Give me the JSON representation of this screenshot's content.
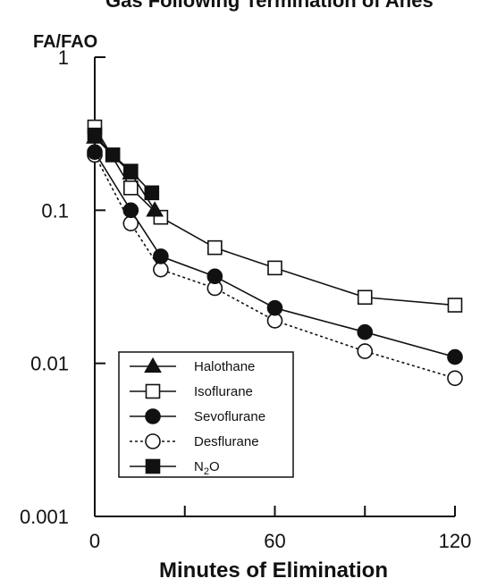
{
  "chart_data": {
    "type": "line",
    "title": "Gas Following Termination of Anes",
    "ylabel": "FA/FAO",
    "xlabel": "Minutes of Elimination",
    "y_scale": "log",
    "ylim": [
      0.001,
      1
    ],
    "xlim": [
      0,
      120
    ],
    "x_ticks": [
      0,
      60,
      120
    ],
    "x_minor_ticks": [
      30,
      90
    ],
    "y_ticks": [
      {
        "value": 1,
        "label": "1"
      },
      {
        "value": 0.1,
        "label": "0.1"
      },
      {
        "value": 0.01,
        "label": "0.01"
      },
      {
        "value": 0.001,
        "label": "0.001"
      }
    ],
    "legend_position": "lower-left",
    "grid": false,
    "series": [
      {
        "name": "Halothane",
        "marker": "filled-triangle",
        "line": "solid",
        "points": [
          [
            0,
            0.3
          ],
          [
            12,
            0.175
          ],
          [
            20,
            0.1
          ]
        ]
      },
      {
        "name": "Isoflurane",
        "marker": "open-square",
        "line": "solid",
        "points": [
          [
            0,
            0.35
          ],
          [
            12,
            0.14
          ],
          [
            22,
            0.09
          ],
          [
            40,
            0.057
          ],
          [
            60,
            0.042
          ],
          [
            90,
            0.027
          ],
          [
            120,
            0.024
          ]
        ]
      },
      {
        "name": "Sevoflurane",
        "marker": "filled-circle",
        "line": "solid",
        "points": [
          [
            0,
            0.24
          ],
          [
            12,
            0.1
          ],
          [
            22,
            0.05
          ],
          [
            40,
            0.037
          ],
          [
            60,
            0.023
          ],
          [
            90,
            0.016
          ],
          [
            120,
            0.011
          ]
        ]
      },
      {
        "name": "Desflurane",
        "marker": "open-circle",
        "line": "dotted",
        "points": [
          [
            0,
            0.23
          ],
          [
            12,
            0.082
          ],
          [
            22,
            0.041
          ],
          [
            40,
            0.031
          ],
          [
            60,
            0.019
          ],
          [
            90,
            0.012
          ],
          [
            120,
            0.008
          ]
        ]
      },
      {
        "name": "N2O",
        "marker": "filled-square",
        "line": "solid",
        "points": [
          [
            0,
            0.31
          ],
          [
            6,
            0.23
          ],
          [
            12,
            0.18
          ],
          [
            19,
            0.13
          ]
        ]
      }
    ]
  }
}
